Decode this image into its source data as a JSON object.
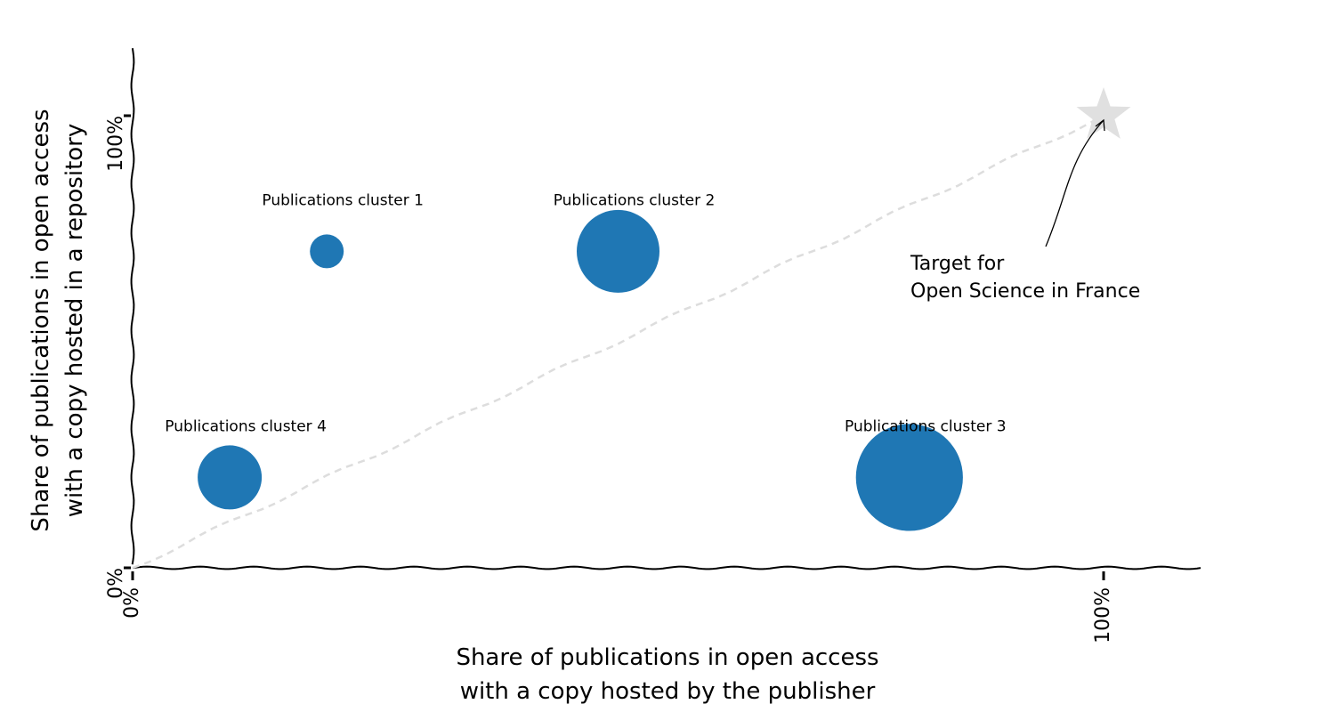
{
  "chart_data": {
    "type": "scatter",
    "title": "",
    "xlabel": [
      "Share of publications in open access",
      "with a copy hosted by the publisher"
    ],
    "ylabel": [
      "Share of publications in open access",
      "with a copy hosted in a repository"
    ],
    "xlim": [
      0,
      1.1
    ],
    "ylim": [
      0,
      1.1
    ],
    "x_ticks": [
      {
        "value": 0,
        "label": "0%"
      },
      {
        "value": 1,
        "label": "100%"
      }
    ],
    "y_ticks": [
      {
        "value": 0,
        "label": "0%"
      },
      {
        "value": 1,
        "label": "100%"
      }
    ],
    "grid": false,
    "bubble_color": "#1f77b4",
    "points": [
      {
        "label": "Publications cluster 1",
        "x": 0.2,
        "y": 0.7,
        "size": 1
      },
      {
        "label": "Publications cluster 2",
        "x": 0.5,
        "y": 0.7,
        "size": 6
      },
      {
        "label": "Publications cluster 3",
        "x": 0.8,
        "y": 0.2,
        "size": 10
      },
      {
        "label": "Publications cluster 4",
        "x": 0.1,
        "y": 0.2,
        "size": 3.6
      }
    ],
    "target": {
      "x": 1,
      "y": 1,
      "marker": "star",
      "color": "#e0e0e0",
      "annotation": [
        "Target for",
        "Open Science in France"
      ]
    },
    "trend_line": {
      "from": [
        0,
        0
      ],
      "to": [
        1,
        1
      ],
      "style": "dashed",
      "color": "#dddddd"
    }
  }
}
